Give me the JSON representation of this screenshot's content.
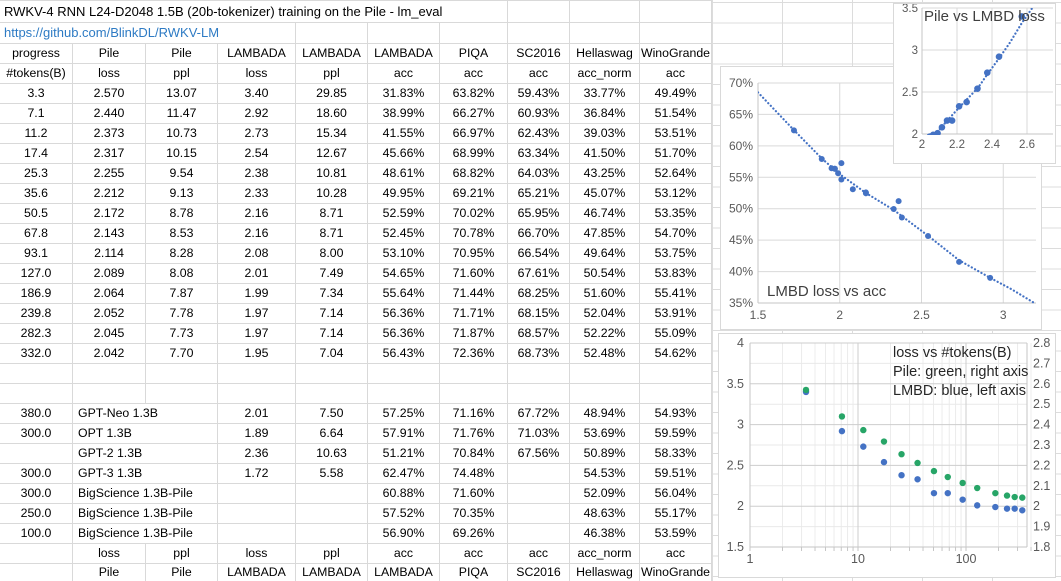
{
  "sheet": {
    "title": "RWKV-4 RNN L24-D2048 1.5B (20b-tokenizer) training on the Pile - lm_eval",
    "link": "https://github.com/BlinkDL/RWKV-LM"
  },
  "table": {
    "header_row1": [
      "progress",
      "Pile",
      "Pile",
      "LAMBADA",
      "LAMBADA",
      "LAMBADA",
      "PIQA",
      "SC2016",
      "Hellaswag",
      "WinoGrande"
    ],
    "header_row2": [
      "#tokens(B)",
      "loss",
      "ppl",
      "loss",
      "ppl",
      "acc",
      "acc",
      "acc",
      "acc_norm",
      "acc"
    ],
    "rows": [
      [
        "3.3",
        "2.570",
        "13.07",
        "3.40",
        "29.85",
        "31.83%",
        "63.82%",
        "59.43%",
        "33.77%",
        "49.49%"
      ],
      [
        "7.1",
        "2.440",
        "11.47",
        "2.92",
        "18.60",
        "38.99%",
        "66.27%",
        "60.93%",
        "36.84%",
        "51.54%"
      ],
      [
        "11.2",
        "2.373",
        "10.73",
        "2.73",
        "15.34",
        "41.55%",
        "66.97%",
        "62.43%",
        "39.03%",
        "53.51%"
      ],
      [
        "17.4",
        "2.317",
        "10.15",
        "2.54",
        "12.67",
        "45.66%",
        "68.99%",
        "63.34%",
        "41.50%",
        "51.70%"
      ],
      [
        "25.3",
        "2.255",
        "9.54",
        "2.38",
        "10.81",
        "48.61%",
        "68.82%",
        "64.03%",
        "43.25%",
        "52.64%"
      ],
      [
        "35.6",
        "2.212",
        "9.13",
        "2.33",
        "10.28",
        "49.95%",
        "69.21%",
        "65.21%",
        "45.07%",
        "53.12%"
      ],
      [
        "50.5",
        "2.172",
        "8.78",
        "2.16",
        "8.71",
        "52.59%",
        "70.02%",
        "65.95%",
        "46.74%",
        "53.35%"
      ],
      [
        "67.8",
        "2.143",
        "8.53",
        "2.16",
        "8.71",
        "52.45%",
        "70.78%",
        "66.70%",
        "47.85%",
        "54.70%"
      ],
      [
        "93.1",
        "2.114",
        "8.28",
        "2.08",
        "8.00",
        "53.10%",
        "70.95%",
        "66.54%",
        "49.64%",
        "53.75%"
      ],
      [
        "127.0",
        "2.089",
        "8.08",
        "2.01",
        "7.49",
        "54.65%",
        "71.60%",
        "67.61%",
        "50.54%",
        "53.83%"
      ],
      [
        "186.9",
        "2.064",
        "7.87",
        "1.99",
        "7.34",
        "55.64%",
        "71.44%",
        "68.25%",
        "51.60%",
        "55.41%"
      ],
      [
        "239.8",
        "2.052",
        "7.78",
        "1.97",
        "7.14",
        "56.36%",
        "71.71%",
        "68.15%",
        "52.04%",
        "53.91%"
      ],
      [
        "282.3",
        "2.045",
        "7.73",
        "1.97",
        "7.14",
        "56.36%",
        "71.87%",
        "68.57%",
        "52.22%",
        "55.09%"
      ],
      [
        "332.0",
        "2.042",
        "7.70",
        "1.95",
        "7.04",
        "56.43%",
        "72.36%",
        "68.73%",
        "52.48%",
        "54.62%"
      ]
    ],
    "model_rows": [
      [
        "380.0",
        "GPT-Neo 1.3B",
        "2.01",
        "7.50",
        "57.25%",
        "71.16%",
        "67.72%",
        "48.94%",
        "54.93%"
      ],
      [
        "300.0",
        "OPT 1.3B",
        "1.89",
        "6.64",
        "57.91%",
        "71.76%",
        "71.03%",
        "53.69%",
        "59.59%"
      ],
      [
        "",
        "GPT-2 1.3B",
        "2.36",
        "10.63",
        "51.21%",
        "70.84%",
        "67.56%",
        "50.89%",
        "58.33%"
      ],
      [
        "300.0",
        "GPT-3 1.3B",
        "1.72",
        "5.58",
        "62.47%",
        "74.48%",
        "",
        "54.53%",
        "59.51%"
      ],
      [
        "300.0",
        "BigScience 1.3B-Pile",
        "",
        "",
        "60.88%",
        "71.60%",
        "",
        "52.09%",
        "56.04%"
      ],
      [
        "250.0",
        "BigScience 1.3B-Pile",
        "",
        "",
        "57.52%",
        "70.35%",
        "",
        "48.63%",
        "55.17%"
      ],
      [
        "100.0",
        "BigScience 1.3B-Pile",
        "",
        "",
        "56.90%",
        "69.26%",
        "",
        "46.38%",
        "53.59%"
      ]
    ],
    "footer_row1": [
      "",
      "loss",
      "ppl",
      "loss",
      "ppl",
      "acc",
      "acc",
      "acc",
      "acc_norm",
      "acc"
    ],
    "footer_row2": [
      "",
      "Pile",
      "Pile",
      "LAMBADA",
      "LAMBADA",
      "LAMBADA",
      "PIQA",
      "SC2016",
      "Hellaswag",
      "WinoGrande"
    ]
  },
  "colors": {
    "marker_blue": "#4472c4",
    "marker_green": "#27a567",
    "hyperlink": "#2e7bc4",
    "gridline": "#d9d9d9",
    "tick_text": "#595959"
  },
  "chart_data": [
    {
      "type": "scatter",
      "title": "Pile vs LMBD loss",
      "xlabel_series": "Pile loss",
      "ylabel_series": "LAMBADA loss",
      "xlim": [
        2,
        2.75
      ],
      "ylim": [
        2,
        3.5
      ],
      "x_ticks": [
        2,
        2.2,
        2.4,
        2.6
      ],
      "y_ticks": [
        2,
        2.5,
        3,
        3.5
      ],
      "grid": true,
      "points": [
        [
          2.57,
          3.4
        ],
        [
          2.44,
          2.92
        ],
        [
          2.373,
          2.73
        ],
        [
          2.317,
          2.54
        ],
        [
          2.255,
          2.38
        ],
        [
          2.212,
          2.33
        ],
        [
          2.172,
          2.16
        ],
        [
          2.143,
          2.16
        ],
        [
          2.114,
          2.08
        ],
        [
          2.089,
          2.01
        ],
        [
          2.064,
          1.99
        ],
        [
          2.052,
          1.97
        ],
        [
          2.045,
          1.97
        ],
        [
          2.042,
          1.95
        ]
      ],
      "trend": [
        [
          2.03,
          1.97
        ],
        [
          2.09,
          2.03
        ],
        [
          2.14,
          2.15
        ],
        [
          2.21,
          2.31
        ],
        [
          2.26,
          2.42
        ],
        [
          2.32,
          2.55
        ],
        [
          2.37,
          2.7
        ],
        [
          2.44,
          2.9
        ],
        [
          2.5,
          3.08
        ],
        [
          2.57,
          3.32
        ],
        [
          2.63,
          3.5
        ]
      ]
    },
    {
      "type": "scatter",
      "title": "LMBD loss vs acc",
      "xlabel_series": "LAMBADA loss",
      "ylabel_series": "LAMBADA acc (%)",
      "xlim": [
        1.5,
        3.2
      ],
      "ylim": [
        35,
        70
      ],
      "x_ticks": [
        1.5,
        2,
        2.5,
        3
      ],
      "y_ticks": [
        35,
        40,
        45,
        50,
        55,
        60,
        65,
        70
      ],
      "y_tick_suffix": "%",
      "grid": true,
      "points": [
        [
          3.4,
          31.83
        ],
        [
          2.92,
          38.99
        ],
        [
          2.73,
          41.55
        ],
        [
          2.54,
          45.66
        ],
        [
          2.38,
          48.61
        ],
        [
          2.33,
          49.95
        ],
        [
          2.16,
          52.59
        ],
        [
          2.16,
          52.45
        ],
        [
          2.08,
          53.1
        ],
        [
          2.01,
          54.65
        ],
        [
          1.99,
          55.64
        ],
        [
          1.97,
          56.36
        ],
        [
          1.97,
          56.36
        ],
        [
          1.95,
          56.43
        ],
        [
          2.01,
          57.25
        ],
        [
          1.89,
          57.91
        ],
        [
          2.36,
          51.21
        ],
        [
          1.72,
          62.47
        ]
      ],
      "trend": [
        [
          1.5,
          68.5
        ],
        [
          1.72,
          62.5
        ],
        [
          1.89,
          58.0
        ],
        [
          2.0,
          55.5
        ],
        [
          2.16,
          52.5
        ],
        [
          2.33,
          49.8
        ],
        [
          2.54,
          45.7
        ],
        [
          2.73,
          41.8
        ],
        [
          2.92,
          39.0
        ],
        [
          3.05,
          37.2
        ],
        [
          3.19,
          35.0
        ]
      ]
    },
    {
      "type": "scatter_log",
      "title_lines": [
        "loss vs #tokens(B)",
        "Pile: green, right axis",
        "LMBD: blue, left axis"
      ],
      "x_ticks": [
        1,
        10,
        100
      ],
      "xlim": [
        1,
        400
      ],
      "x_log": true,
      "left_ylim": [
        1.5,
        4
      ],
      "left_ticks": [
        4,
        3.5,
        3,
        2.5,
        2,
        1.5
      ],
      "right_ylim": [
        1.8,
        2.8
      ],
      "right_ticks": [
        2.8,
        2.7,
        2.6,
        2.5,
        2.4,
        2.3,
        2.2,
        2.1,
        2,
        1.9,
        1.8
      ],
      "grid": true,
      "series": [
        {
          "name": "LMBD",
          "axis": "left",
          "color": "#4472c4",
          "points": [
            [
              3.3,
              3.4
            ],
            [
              7.1,
              2.92
            ],
            [
              11.2,
              2.73
            ],
            [
              17.4,
              2.54
            ],
            [
              25.3,
              2.38
            ],
            [
              35.6,
              2.33
            ],
            [
              50.5,
              2.16
            ],
            [
              67.8,
              2.16
            ],
            [
              93.1,
              2.08
            ],
            [
              127.0,
              2.01
            ],
            [
              186.9,
              1.99
            ],
            [
              239.8,
              1.97
            ],
            [
              282.3,
              1.97
            ],
            [
              332.0,
              1.95
            ]
          ]
        },
        {
          "name": "Pile",
          "axis": "right",
          "color": "#27a567",
          "points": [
            [
              3.3,
              2.57
            ],
            [
              7.1,
              2.44
            ],
            [
              11.2,
              2.373
            ],
            [
              17.4,
              2.317
            ],
            [
              25.3,
              2.255
            ],
            [
              35.6,
              2.212
            ],
            [
              50.5,
              2.172
            ],
            [
              67.8,
              2.143
            ],
            [
              93.1,
              2.114
            ],
            [
              127.0,
              2.089
            ],
            [
              186.9,
              2.064
            ],
            [
              239.8,
              2.052
            ],
            [
              282.3,
              2.045
            ],
            [
              332.0,
              2.042
            ]
          ]
        }
      ]
    }
  ]
}
